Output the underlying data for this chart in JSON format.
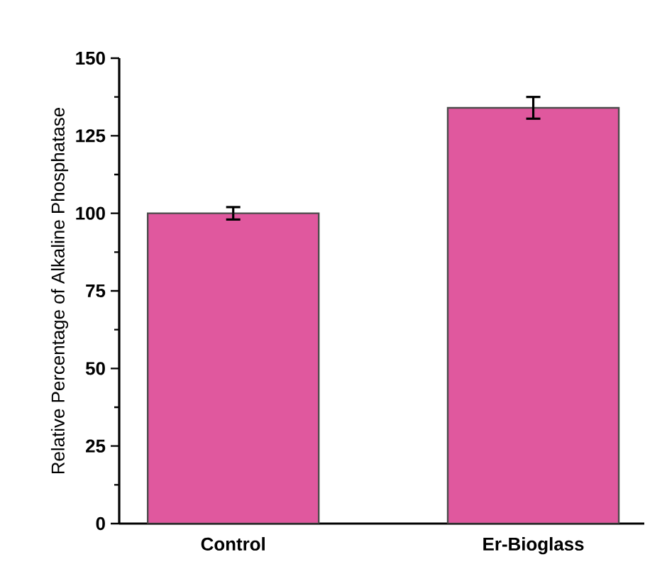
{
  "chart_data": {
    "type": "bar",
    "ylabel": "Relative Percentage of Alkaline Phosphatase",
    "categories": [
      "Control",
      "Er-Bioglass"
    ],
    "values": [
      100,
      134
    ],
    "errors": [
      2,
      3.5
    ],
    "color": "#e0589e",
    "ylim": [
      0,
      150
    ],
    "yticks": [
      0,
      25,
      50,
      75,
      100,
      125,
      150
    ]
  }
}
